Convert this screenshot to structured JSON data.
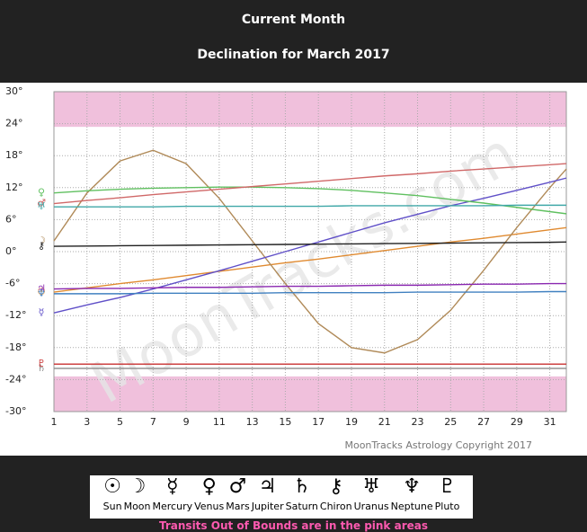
{
  "chart_data": {
    "type": "line",
    "title": "Current Month",
    "subtitle": "Declination for March 2017",
    "x": [
      1,
      3,
      5,
      7,
      9,
      11,
      13,
      15,
      17,
      19,
      21,
      23,
      25,
      27,
      29,
      31,
      32
    ],
    "xlim": [
      1,
      32
    ],
    "xticks": [
      1,
      3,
      5,
      7,
      9,
      11,
      13,
      15,
      17,
      19,
      21,
      23,
      25,
      27,
      29,
      31
    ],
    "ylim": [
      -30,
      30
    ],
    "yticks": [
      {
        "value": 30,
        "label": "30°"
      },
      {
        "value": 24,
        "label": "24°"
      },
      {
        "value": 18,
        "label": "18°"
      },
      {
        "value": 12,
        "label": "12°"
      },
      {
        "value": 6,
        "label": "6°"
      },
      {
        "value": 0,
        "label": "0°"
      },
      {
        "value": -6,
        "label": "-6°"
      },
      {
        "value": -12,
        "label": "-12°"
      },
      {
        "value": -18,
        "label": "-18°"
      },
      {
        "value": -24,
        "label": "-24°"
      },
      {
        "value": -30,
        "label": "-30°"
      }
    ],
    "grid": true,
    "out_of_bounds_bands": [
      [
        23.4,
        30
      ],
      [
        -30,
        -23.4
      ]
    ],
    "band_color": "#f0c0dc",
    "series": [
      {
        "name": "Sun",
        "symbol": "☉",
        "color": "#e08a30",
        "values": [
          -7.6,
          -6.8,
          -6.0,
          -5.3,
          -4.5,
          -3.7,
          -2.9,
          -2.1,
          -1.4,
          -0.6,
          0.2,
          1.0,
          1.8,
          2.5,
          3.3,
          4.1,
          4.5
        ]
      },
      {
        "name": "Moon",
        "symbol": "☽",
        "color": "#b08a58",
        "values": [
          2,
          11,
          17,
          19,
          16.5,
          10,
          2,
          -6,
          -13.5,
          -18,
          -19,
          -16.5,
          -11,
          -3.5,
          4.5,
          12,
          15.5
        ]
      },
      {
        "name": "Mercury",
        "symbol": "☿",
        "color": "#6050c8",
        "values": [
          -11.5,
          -10,
          -8.6,
          -7,
          -5.3,
          -3.6,
          -1.8,
          0,
          1.8,
          3.6,
          5.4,
          7,
          8.6,
          10,
          11.5,
          13,
          13.8
        ]
      },
      {
        "name": "Venus",
        "symbol": "♀",
        "color": "#60c060",
        "values": [
          11,
          11.4,
          11.7,
          11.9,
          12,
          12.1,
          12.1,
          12,
          11.8,
          11.5,
          11,
          10.5,
          9.8,
          9.1,
          8.3,
          7.5,
          7.1
        ]
      },
      {
        "name": "Mars",
        "symbol": "♂",
        "color": "#d06868",
        "values": [
          9,
          9.6,
          10.1,
          10.7,
          11.2,
          11.7,
          12.2,
          12.7,
          13.2,
          13.7,
          14.2,
          14.6,
          15.1,
          15.5,
          15.9,
          16.3,
          16.5
        ]
      },
      {
        "name": "Jupiter",
        "symbol": "♃",
        "color": "#8a28b0",
        "values": [
          -7,
          -6.9,
          -6.9,
          -6.8,
          -6.7,
          -6.7,
          -6.6,
          -6.5,
          -6.5,
          -6.4,
          -6.3,
          -6.3,
          -6.2,
          -6.1,
          -6.1,
          -6.0,
          -6.0
        ]
      },
      {
        "name": "Saturn",
        "symbol": "♄",
        "color": "#8a8a8a",
        "values": [
          -21.9,
          -21.9,
          -21.9,
          -21.9,
          -21.9,
          -21.9,
          -21.9,
          -21.9,
          -21.9,
          -21.9,
          -21.9,
          -21.9,
          -21.9,
          -21.9,
          -21.9,
          -21.9,
          -21.9
        ]
      },
      {
        "name": "Chiron",
        "symbol": "⚷",
        "color": "#202020",
        "values": [
          1,
          1.05,
          1.1,
          1.15,
          1.2,
          1.25,
          1.3,
          1.35,
          1.4,
          1.45,
          1.5,
          1.55,
          1.6,
          1.65,
          1.7,
          1.75,
          1.8
        ]
      },
      {
        "name": "Uranus",
        "symbol": "♅",
        "color": "#40a8a8",
        "values": [
          8.4,
          8.4,
          8.4,
          8.4,
          8.5,
          8.5,
          8.5,
          8.5,
          8.5,
          8.6,
          8.6,
          8.6,
          8.6,
          8.6,
          8.7,
          8.7,
          8.7
        ]
      },
      {
        "name": "Neptune",
        "symbol": "♆",
        "color": "#4080c0",
        "values": [
          -7.9,
          -7.9,
          -7.9,
          -7.8,
          -7.8,
          -7.8,
          -7.8,
          -7.7,
          -7.7,
          -7.7,
          -7.7,
          -7.6,
          -7.6,
          -7.6,
          -7.6,
          -7.5,
          -7.5
        ]
      },
      {
        "name": "Pluto",
        "symbol": "♇",
        "color": "#c83030",
        "values": [
          -21.1,
          -21.1,
          -21.1,
          -21.1,
          -21.1,
          -21.1,
          -21.1,
          -21.1,
          -21.1,
          -21.1,
          -21.1,
          -21.1,
          -21.1,
          -21.1,
          -21.1,
          -21.1,
          -21.1
        ]
      }
    ],
    "watermark": "MoonTracks.com",
    "copyright": "MoonTracks Astrology Copyright 2017",
    "footnote": "Transits Out of Bounds are in the pink areas"
  }
}
